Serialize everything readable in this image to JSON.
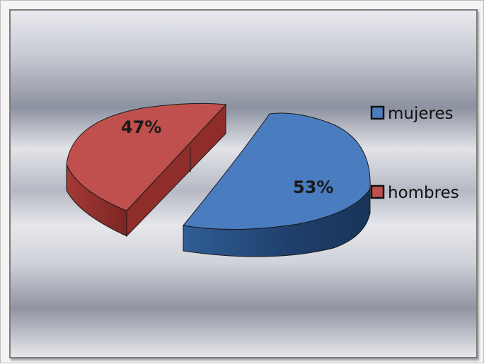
{
  "chart_data": {
    "type": "pie",
    "title": "",
    "series": [
      {
        "name": "",
        "slices": [
          {
            "label": "mujeres",
            "value": 53,
            "display": "53%",
            "color": "#4a7cc0"
          },
          {
            "label": "hombres",
            "value": 47,
            "display": "47%",
            "color": "#c0504d"
          }
        ]
      }
    ],
    "legend": {
      "position": "right",
      "items": [
        "mujeres",
        "hombres"
      ]
    },
    "style": "3d-exploded"
  }
}
